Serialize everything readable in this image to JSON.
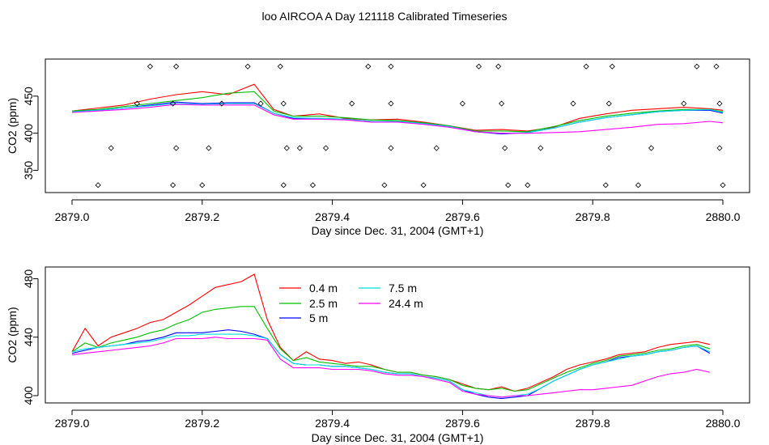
{
  "title": "loo AIRCOA A  Day 121118  Calibrated Timeseries",
  "chart_data": [
    {
      "type": "scatter",
      "title": "",
      "xlabel": "Day since Dec. 31, 2004 (GMT+1)",
      "ylabel": "CO2 (ppm)",
      "xlim": [
        2879.0,
        2880.0
      ],
      "ylim": [
        320,
        500
      ],
      "x_ticks": [
        "2879.0",
        "2879.2",
        "2879.4",
        "2879.6",
        "2879.8",
        "2880.0"
      ],
      "y_ticks": [
        "350",
        "400",
        "450"
      ],
      "x": [
        2879.0,
        2879.04,
        2879.08,
        2879.12,
        2879.16,
        2879.2,
        2879.24,
        2879.28,
        2879.31,
        2879.34,
        2879.38,
        2879.42,
        2879.46,
        2879.5,
        2879.54,
        2879.58,
        2879.62,
        2879.66,
        2879.7,
        2879.74,
        2879.78,
        2879.82,
        2879.86,
        2879.9,
        2879.94,
        2879.98,
        2880.0
      ],
      "series": [
        {
          "name": "0.4 m",
          "color": "#ff0000",
          "values": [
            430,
            434,
            438,
            446,
            452,
            456,
            452,
            466,
            432,
            423,
            426,
            420,
            418,
            419,
            415,
            410,
            404,
            405,
            403,
            408,
            420,
            426,
            431,
            433,
            435,
            433,
            431
          ]
        },
        {
          "name": "2.5 m",
          "color": "#00c000",
          "values": [
            430,
            432,
            436,
            440,
            444,
            448,
            454,
            456,
            430,
            423,
            423,
            421,
            418,
            417,
            414,
            410,
            403,
            403,
            402,
            409,
            417,
            423,
            427,
            430,
            432,
            432,
            429
          ]
        },
        {
          "name": "5 m",
          "color": "#0000ff",
          "values": [
            429,
            431,
            434,
            438,
            442,
            440,
            441,
            441,
            427,
            420,
            420,
            419,
            416,
            416,
            413,
            409,
            402,
            399,
            401,
            407,
            415,
            421,
            425,
            429,
            431,
            431,
            427
          ]
        },
        {
          "name": "7.5 m",
          "color": "#00e0e0",
          "values": [
            429,
            431,
            434,
            437,
            440,
            439,
            440,
            440,
            427,
            421,
            420,
            419,
            416,
            416,
            413,
            409,
            402,
            400,
            401,
            407,
            415,
            421,
            425,
            429,
            431,
            432,
            428
          ]
        },
        {
          "name": "24.4 m",
          "color": "#ff00ff",
          "values": [
            428,
            430,
            432,
            435,
            439,
            438,
            438,
            438,
            425,
            419,
            419,
            418,
            415,
            415,
            412,
            408,
            402,
            400,
            400,
            401,
            402,
            405,
            408,
            412,
            413,
            416,
            414
          ]
        }
      ],
      "markers": {
        "x": [
          2879.04,
          2879.06,
          2879.12,
          2879.1,
          2879.16,
          2879.155,
          2879.16,
          2879.155,
          2879.2,
          2879.21,
          2879.23,
          2879.27,
          2879.29,
          2879.32,
          2879.325,
          2879.33,
          2879.325,
          2879.35,
          2879.37,
          2879.39,
          2879.43,
          2879.455,
          2879.48,
          2879.49,
          2879.49,
          2879.49,
          2879.54,
          2879.56,
          2879.6,
          2879.625,
          2879.655,
          2879.66,
          2879.665,
          2879.67,
          2879.7,
          2879.72,
          2879.77,
          2879.79,
          2879.82,
          2879.825,
          2879.825,
          2879.83,
          2879.87,
          2879.89,
          2879.94,
          2879.96,
          2879.99,
          2879.995,
          2879.995,
          2880.0
        ],
        "y": [
          330,
          380,
          490,
          440,
          490,
          440,
          380,
          330,
          330,
          380,
          440,
          490,
          440,
          490,
          440,
          380,
          330,
          380,
          330,
          380,
          440,
          490,
          330,
          380,
          440,
          490,
          330,
          380,
          440,
          490,
          490,
          440,
          380,
          330,
          330,
          380,
          440,
          490,
          330,
          380,
          440,
          490,
          330,
          380,
          440,
          490,
          490,
          440,
          380,
          330
        ]
      }
    },
    {
      "type": "line",
      "title": "",
      "xlabel": "Day since Dec. 31, 2004 (GMT+1)",
      "ylabel": "CO2 (ppm)",
      "xlim": [
        2879.0,
        2880.0
      ],
      "ylim": [
        395,
        488
      ],
      "x_ticks": [
        "2879.0",
        "2879.2",
        "2879.4",
        "2879.6",
        "2879.8",
        "2880.0"
      ],
      "y_ticks": [
        "400",
        "440",
        "480"
      ],
      "legend": {
        "placement": "top-center"
      },
      "x": [
        2879.0,
        2879.02,
        2879.04,
        2879.06,
        2879.08,
        2879.1,
        2879.12,
        2879.14,
        2879.16,
        2879.18,
        2879.2,
        2879.22,
        2879.24,
        2879.26,
        2879.28,
        2879.3,
        2879.32,
        2879.34,
        2879.36,
        2879.38,
        2879.4,
        2879.42,
        2879.44,
        2879.46,
        2879.48,
        2879.5,
        2879.52,
        2879.54,
        2879.56,
        2879.58,
        2879.6,
        2879.62,
        2879.64,
        2879.66,
        2879.68,
        2879.7,
        2879.72,
        2879.74,
        2879.76,
        2879.78,
        2879.8,
        2879.82,
        2879.84,
        2879.86,
        2879.88,
        2879.9,
        2879.92,
        2879.94,
        2879.96,
        2879.98
      ],
      "series": [
        {
          "name": "0.4 m",
          "color": "#ff0000",
          "values": [
            430,
            446,
            434,
            440,
            443,
            446,
            450,
            452,
            457,
            462,
            468,
            474,
            476,
            478,
            483,
            452,
            433,
            424,
            430,
            425,
            424,
            422,
            423,
            421,
            418,
            416,
            416,
            414,
            413,
            411,
            408,
            405,
            404,
            406,
            403,
            405,
            409,
            413,
            418,
            421,
            423,
            425,
            428,
            429,
            430,
            433,
            435,
            436,
            437,
            435
          ]
        },
        {
          "name": "2.5 m",
          "color": "#00c000",
          "values": [
            430,
            436,
            433,
            436,
            438,
            440,
            443,
            445,
            449,
            452,
            457,
            459,
            460,
            461,
            461,
            446,
            432,
            424,
            426,
            423,
            422,
            421,
            420,
            420,
            418,
            416,
            416,
            414,
            413,
            411,
            407,
            405,
            404,
            405,
            403,
            404,
            408,
            412,
            416,
            419,
            422,
            424,
            427,
            428,
            429,
            431,
            432,
            434,
            435,
            432
          ]
        },
        {
          "name": "5 m",
          "color": "#0000ff",
          "values": [
            429,
            431,
            433,
            434,
            435,
            437,
            438,
            440,
            443,
            443,
            443,
            444,
            445,
            444,
            442,
            439,
            428,
            422,
            421,
            421,
            420,
            420,
            419,
            418,
            416,
            415,
            415,
            413,
            412,
            410,
            404,
            401,
            399,
            398,
            399,
            400,
            405,
            410,
            414,
            418,
            421,
            423,
            426,
            427,
            428,
            430,
            431,
            433,
            434,
            429
          ]
        },
        {
          "name": "7.5 m",
          "color": "#00e0e0",
          "values": [
            430,
            432,
            433,
            434,
            435,
            436,
            437,
            439,
            441,
            441,
            442,
            442,
            442,
            442,
            441,
            439,
            428,
            422,
            421,
            421,
            420,
            420,
            419,
            418,
            416,
            415,
            415,
            413,
            412,
            410,
            404,
            402,
            400,
            399,
            400,
            401,
            405,
            410,
            414,
            418,
            421,
            423,
            425,
            427,
            428,
            430,
            431,
            433,
            434,
            430
          ]
        },
        {
          "name": "24.4 m",
          "color": "#ff00ff",
          "values": [
            428,
            429,
            430,
            431,
            432,
            433,
            434,
            436,
            439,
            439,
            439,
            440,
            439,
            439,
            439,
            438,
            425,
            419,
            419,
            419,
            418,
            418,
            418,
            417,
            415,
            414,
            414,
            413,
            411,
            409,
            403,
            401,
            400,
            399,
            400,
            400,
            401,
            402,
            403,
            404,
            404,
            405,
            406,
            407,
            410,
            413,
            415,
            416,
            418,
            416
          ]
        }
      ]
    }
  ]
}
